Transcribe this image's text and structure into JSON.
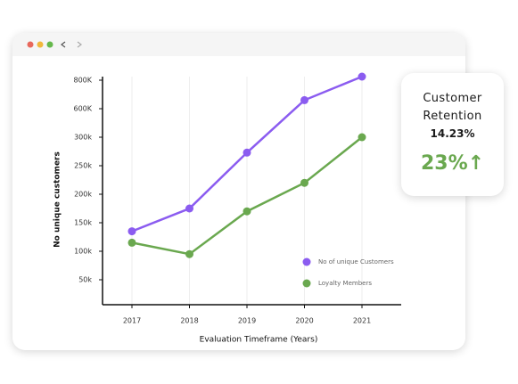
{
  "chart_data": {
    "type": "line",
    "ylabel": "No unique customers",
    "xlabel": "Evaluation Timeframe (Years)",
    "categories": [
      "2017",
      "2018",
      "2019",
      "2020",
      "2021"
    ],
    "series": [
      {
        "name": "No of unique Customers",
        "color": "#8b5cf0",
        "values": [
          135000,
          175000,
          273000,
          660000,
          825000
        ]
      },
      {
        "name": "Loyalty Members",
        "color": "#6aa84f",
        "values": [
          115000,
          95000,
          170000,
          220000,
          300000
        ]
      }
    ],
    "ylim": [
      0,
      825000
    ],
    "yticks": [
      {
        "value": 50000,
        "label": "50k"
      },
      {
        "value": 100000,
        "label": "100k"
      },
      {
        "value": 150000,
        "label": "150k"
      },
      {
        "value": 200000,
        "label": "200k"
      },
      {
        "value": 250000,
        "label": "250k"
      },
      {
        "value": 300000,
        "label": "300k"
      },
      {
        "value": 600000,
        "label": "600K"
      },
      {
        "value": 800000,
        "label": "800K"
      }
    ],
    "grid": true,
    "legend": "lower right"
  },
  "card": {
    "title": "Customer Retention",
    "value": "14.23%",
    "change": "23%↑"
  }
}
